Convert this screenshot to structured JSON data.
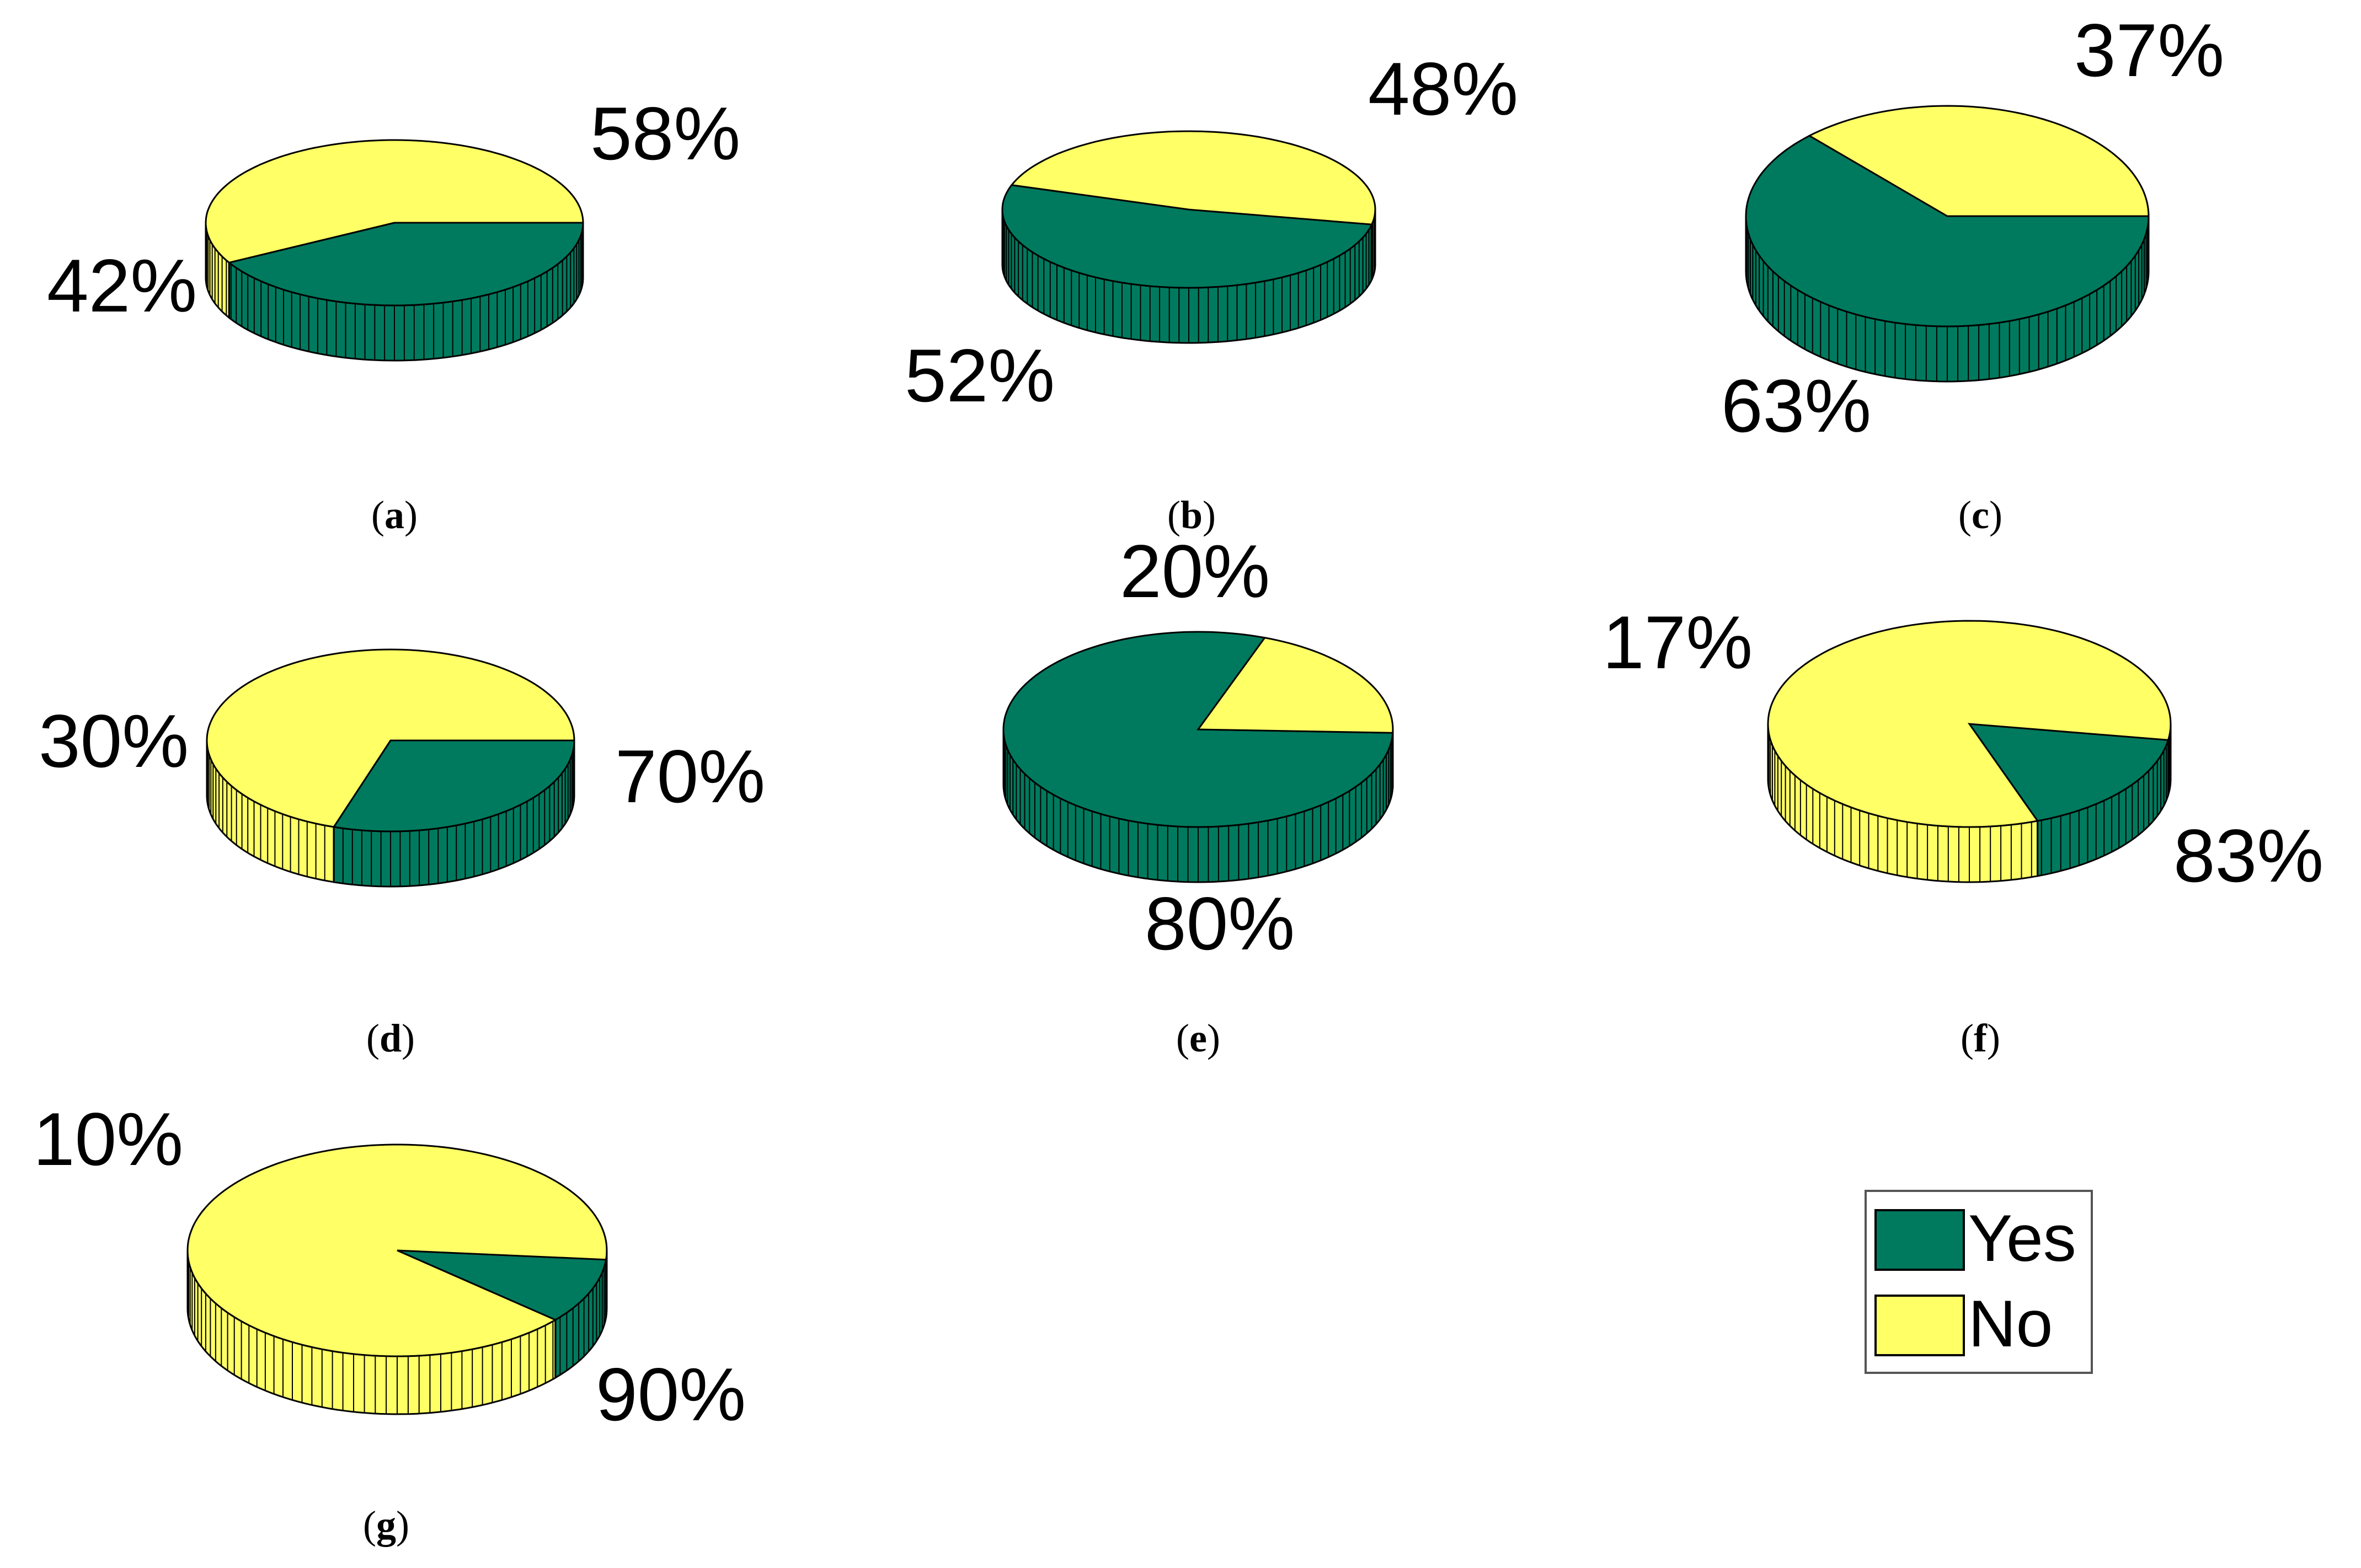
{
  "colors": {
    "yes": "#007A5E",
    "no": "#FFFF66",
    "edge": "#000000"
  },
  "legend": {
    "items": [
      {
        "label": "Yes",
        "color": "#007A5E"
      },
      {
        "label": "No",
        "color": "#FFFF66"
      }
    ]
  },
  "chart_data": [
    {
      "type": "pie",
      "panel": "a",
      "caption": {
        "open": "(",
        "letter": "a",
        "close": ")"
      },
      "categories": [
        "Yes",
        "No"
      ],
      "values": [
        42,
        58
      ],
      "labels": [
        "42%",
        "58%"
      ]
    },
    {
      "type": "pie",
      "panel": "b",
      "caption": {
        "open": "(",
        "letter": "b",
        "close": ")"
      },
      "categories": [
        "Yes",
        "No"
      ],
      "values": [
        52,
        48
      ],
      "labels": [
        "52%",
        "48%"
      ]
    },
    {
      "type": "pie",
      "panel": "c",
      "caption": {
        "open": "(",
        "letter": "c",
        "close": ")"
      },
      "categories": [
        "Yes",
        "No"
      ],
      "values": [
        63,
        37
      ],
      "labels": [
        "63%",
        "37%"
      ]
    },
    {
      "type": "pie",
      "panel": "d",
      "caption": {
        "open": "(",
        "letter": "d",
        "close": ")"
      },
      "categories": [
        "Yes",
        "No"
      ],
      "values": [
        30,
        70
      ],
      "labels": [
        "30%",
        "70%"
      ]
    },
    {
      "type": "pie",
      "panel": "e",
      "caption": {
        "open": "(",
        "letter": "e",
        "close": ")"
      },
      "categories": [
        "Yes",
        "No"
      ],
      "values": [
        80,
        20
      ],
      "labels": [
        "80%",
        "20%"
      ]
    },
    {
      "type": "pie",
      "panel": "f",
      "caption": {
        "open": "(",
        "letter": "f",
        "close": ")"
      },
      "categories": [
        "Yes",
        "No"
      ],
      "values": [
        17,
        83
      ],
      "labels": [
        "17%",
        "83%"
      ]
    },
    {
      "type": "pie",
      "panel": "g",
      "caption": {
        "open": "(",
        "letter": "g",
        "close": ")"
      },
      "categories": [
        "Yes",
        "No"
      ],
      "values": [
        10,
        90
      ],
      "labels": [
        "10%",
        "90%"
      ]
    }
  ]
}
